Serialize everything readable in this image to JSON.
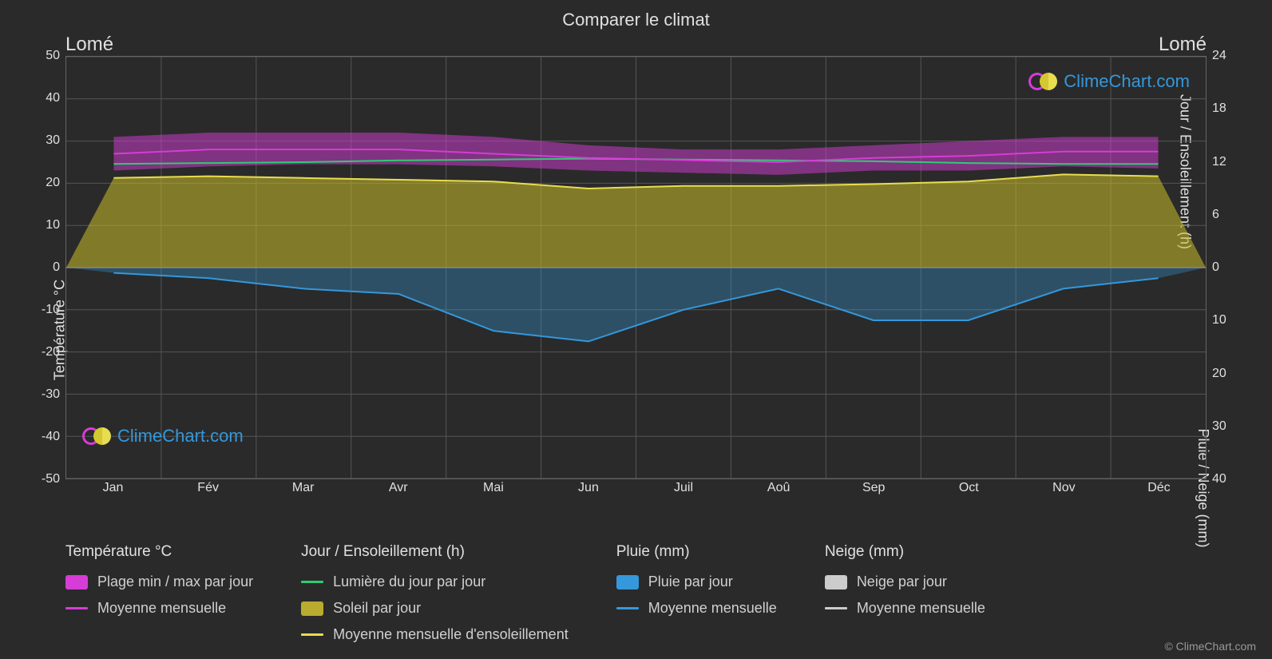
{
  "title": "Comparer le climat",
  "city_left": "Lomé",
  "city_right": "Lomé",
  "chart": {
    "type": "line",
    "background_color": "#2a2a2a",
    "grid_color": "#555555",
    "text_color": "#e0e0e0",
    "months": [
      "Jan",
      "Fév",
      "Mar",
      "Avr",
      "Mai",
      "Jun",
      "Juil",
      "Aoû",
      "Sep",
      "Oct",
      "Nov",
      "Déc"
    ],
    "left_axis": {
      "label": "Température °C",
      "min": -50,
      "max": 50,
      "step": 10,
      "ticks": [
        50,
        40,
        30,
        20,
        10,
        0,
        -10,
        -20,
        -30,
        -40,
        -50
      ]
    },
    "right_axis_top": {
      "label": "Jour / Ensoleillement (h)",
      "min": 0,
      "max": 24,
      "step": 6,
      "ticks": [
        24,
        18,
        12,
        6,
        0
      ]
    },
    "right_axis_bottom": {
      "label": "Pluie / Neige (mm)",
      "min": 0,
      "max": 40,
      "step": 10,
      "ticks": [
        10,
        20,
        30,
        40
      ]
    },
    "series": {
      "temp_avg": {
        "color": "#d63cd6",
        "line_width": 2,
        "values": [
          27,
          28,
          28,
          28,
          27,
          26,
          25.5,
          25,
          26,
          26.5,
          27.5,
          27.5
        ]
      },
      "temp_min": {
        "values": [
          23,
          24,
          24.5,
          24.5,
          24,
          23,
          22.5,
          22,
          23,
          23,
          24,
          23.5
        ]
      },
      "temp_max": {
        "values": [
          31,
          32,
          32,
          32,
          31,
          29,
          28,
          28,
          29,
          30,
          31,
          31
        ]
      },
      "daylight": {
        "color": "#2ecc71",
        "line_width": 2,
        "values": [
          11.8,
          11.9,
          12.0,
          12.2,
          12.3,
          12.4,
          12.3,
          12.2,
          12.1,
          11.9,
          11.8,
          11.8
        ]
      },
      "sunshine_avg": {
        "color": "#e8dc50",
        "line_width": 2,
        "values": [
          10.2,
          10.4,
          10.2,
          10.0,
          9.8,
          9.0,
          9.3,
          9.3,
          9.5,
          9.8,
          10.6,
          10.4
        ]
      },
      "rain_avg": {
        "color": "#3498db",
        "line_width": 2,
        "values": [
          1,
          2,
          4,
          5,
          12,
          14,
          8,
          4,
          10,
          10,
          4,
          2
        ]
      }
    }
  },
  "legend": {
    "col1": {
      "header": "Température °C",
      "items": [
        {
          "type": "swatch",
          "color": "#d63cd6",
          "label": "Plage min / max par jour"
        },
        {
          "type": "line",
          "color": "#d63cd6",
          "label": "Moyenne mensuelle"
        }
      ]
    },
    "col2": {
      "header": "Jour / Ensoleillement (h)",
      "items": [
        {
          "type": "line",
          "color": "#2ecc71",
          "label": "Lumière du jour par jour"
        },
        {
          "type": "swatch",
          "color": "#b8ab2e",
          "label": "Soleil par jour"
        },
        {
          "type": "line",
          "color": "#e8dc50",
          "label": "Moyenne mensuelle d'ensoleillement"
        }
      ]
    },
    "col3": {
      "header": "Pluie (mm)",
      "items": [
        {
          "type": "swatch",
          "color": "#3498db",
          "label": "Pluie par jour"
        },
        {
          "type": "line",
          "color": "#3498db",
          "label": "Moyenne mensuelle"
        }
      ]
    },
    "col4": {
      "header": "Neige (mm)",
      "items": [
        {
          "type": "swatch",
          "color": "#cccccc",
          "label": "Neige par jour"
        },
        {
          "type": "line",
          "color": "#cccccc",
          "label": "Moyenne mensuelle"
        }
      ]
    }
  },
  "watermark_text": "ClimeChart.com",
  "copyright": "© ClimeChart.com"
}
